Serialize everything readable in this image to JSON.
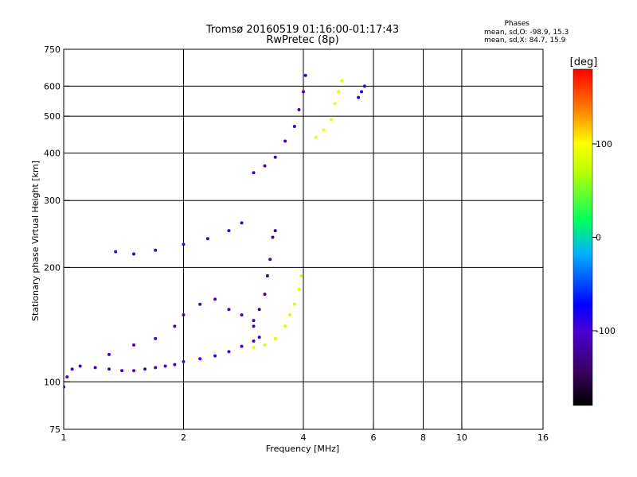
{
  "chart_data": {
    "type": "scatter",
    "title": "Tromsø 20160519 01:16:00-01:17:43",
    "subtitle": "RwPretec (8p)",
    "xlabel": "Frequency [MHz]",
    "ylabel": "Stationary phase Virtual Height [km]",
    "x_scale": "log",
    "y_scale": "log",
    "xlim": [
      1,
      16
    ],
    "ylim": [
      75,
      750
    ],
    "x_ticks": [
      1,
      2,
      4,
      6,
      8,
      10,
      16
    ],
    "y_ticks": [
      75,
      100,
      200,
      300,
      400,
      500,
      600,
      750
    ],
    "grid_x": [
      2,
      4,
      6,
      8,
      10
    ],
    "grid_y": [
      100,
      200,
      300,
      400,
      500,
      600
    ],
    "phases_info": {
      "title": "Phases",
      "line1": "mean, sd,O: -98.9, 15.3",
      "line2": "mean, sd,X:  84.7, 15.9"
    },
    "colorbar": {
      "label": "[deg]",
      "range": [
        -180,
        180
      ],
      "ticks": [
        100,
        0,
        -100
      ],
      "colormap": "rainbow (black-purple-blue-cyan-green-yellow-orange-red)"
    },
    "traces": [
      {
        "desc": "E/F1 low trace (O-mode, blue)",
        "phase": -100,
        "points": [
          [
            1.0,
            97
          ],
          [
            1.02,
            103
          ],
          [
            1.05,
            108
          ],
          [
            1.1,
            110
          ],
          [
            1.2,
            109
          ],
          [
            1.3,
            108
          ],
          [
            1.4,
            107
          ],
          [
            1.5,
            107
          ],
          [
            1.6,
            108
          ],
          [
            1.7,
            109
          ],
          [
            1.8,
            110
          ],
          [
            1.9,
            111
          ],
          [
            2.0,
            113
          ],
          [
            2.2,
            115
          ],
          [
            2.4,
            117
          ],
          [
            2.6,
            120
          ],
          [
            2.8,
            124
          ],
          [
            3.0,
            128
          ],
          [
            3.1,
            131
          ]
        ]
      },
      {
        "desc": "F1 scatter band (blue)",
        "phase": -105,
        "points": [
          [
            1.3,
            118
          ],
          [
            1.5,
            125
          ],
          [
            1.7,
            130
          ],
          [
            1.9,
            140
          ],
          [
            2.0,
            150
          ],
          [
            2.2,
            160
          ],
          [
            2.4,
            165
          ],
          [
            2.6,
            155
          ],
          [
            2.8,
            150
          ],
          [
            3.0,
            145
          ]
        ]
      },
      {
        "desc": "F1 cusp (purple)",
        "phase": -125,
        "points": [
          [
            3.0,
            140
          ],
          [
            3.1,
            155
          ],
          [
            3.2,
            170
          ],
          [
            3.25,
            190
          ],
          [
            3.3,
            210
          ],
          [
            3.35,
            240
          ],
          [
            3.4,
            250
          ]
        ]
      },
      {
        "desc": "X-mode low trace (yellow)",
        "phase": 85,
        "points": [
          [
            3.0,
            123
          ],
          [
            3.2,
            125
          ],
          [
            3.4,
            130
          ],
          [
            3.6,
            140
          ],
          [
            3.7,
            150
          ],
          [
            3.8,
            160
          ],
          [
            3.9,
            175
          ],
          [
            3.95,
            190
          ]
        ]
      },
      {
        "desc": "Upper trace near 220-260 km (blue)",
        "phase": -95,
        "points": [
          [
            1.35,
            220
          ],
          [
            1.5,
            217
          ],
          [
            1.7,
            222
          ],
          [
            2.0,
            230
          ],
          [
            2.3,
            238
          ],
          [
            2.6,
            250
          ],
          [
            2.8,
            262
          ]
        ]
      },
      {
        "desc": "F2 O-mode trace (blue/purple)",
        "phase": -110,
        "points": [
          [
            3.0,
            355
          ],
          [
            3.2,
            370
          ],
          [
            3.4,
            390
          ],
          [
            3.6,
            430
          ],
          [
            3.8,
            470
          ],
          [
            3.9,
            520
          ],
          [
            4.0,
            580
          ],
          [
            4.05,
            640
          ]
        ]
      },
      {
        "desc": "F2 X-mode trace (yellow)",
        "phase": 90,
        "points": [
          [
            4.3,
            440
          ],
          [
            4.5,
            460
          ],
          [
            4.7,
            490
          ],
          [
            4.8,
            540
          ],
          [
            4.9,
            580
          ],
          [
            5.0,
            620
          ]
        ]
      },
      {
        "desc": "F2 top blue (near 5.5 MHz)",
        "phase": -90,
        "points": [
          [
            5.5,
            560
          ],
          [
            5.6,
            580
          ],
          [
            5.7,
            600
          ]
        ]
      }
    ]
  }
}
